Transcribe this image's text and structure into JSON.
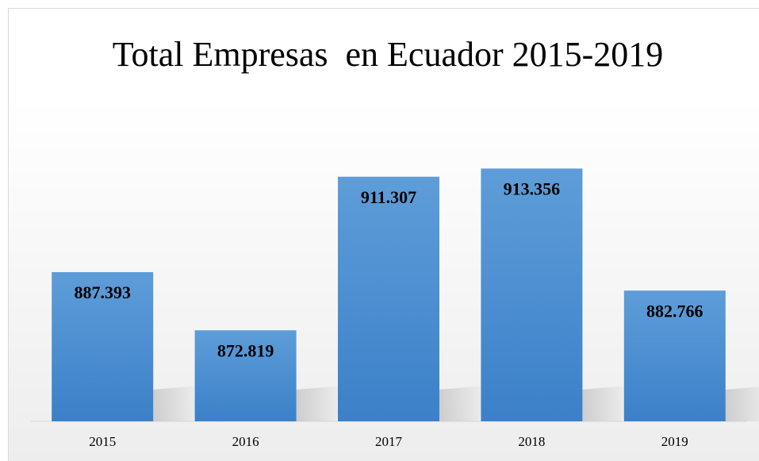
{
  "chart_data": {
    "type": "bar",
    "title": "Total Empresas  en Ecuador 2015-2019",
    "categories": [
      "2015",
      "2016",
      "2017",
      "2018",
      "2019"
    ],
    "values": [
      887393,
      872819,
      911307,
      913356,
      882766
    ],
    "value_labels": [
      "887.393",
      "872.819",
      "911.307",
      "913.356",
      "882.766"
    ],
    "color": "#4a8fd2",
    "ylim": [
      850000,
      920000
    ]
  }
}
